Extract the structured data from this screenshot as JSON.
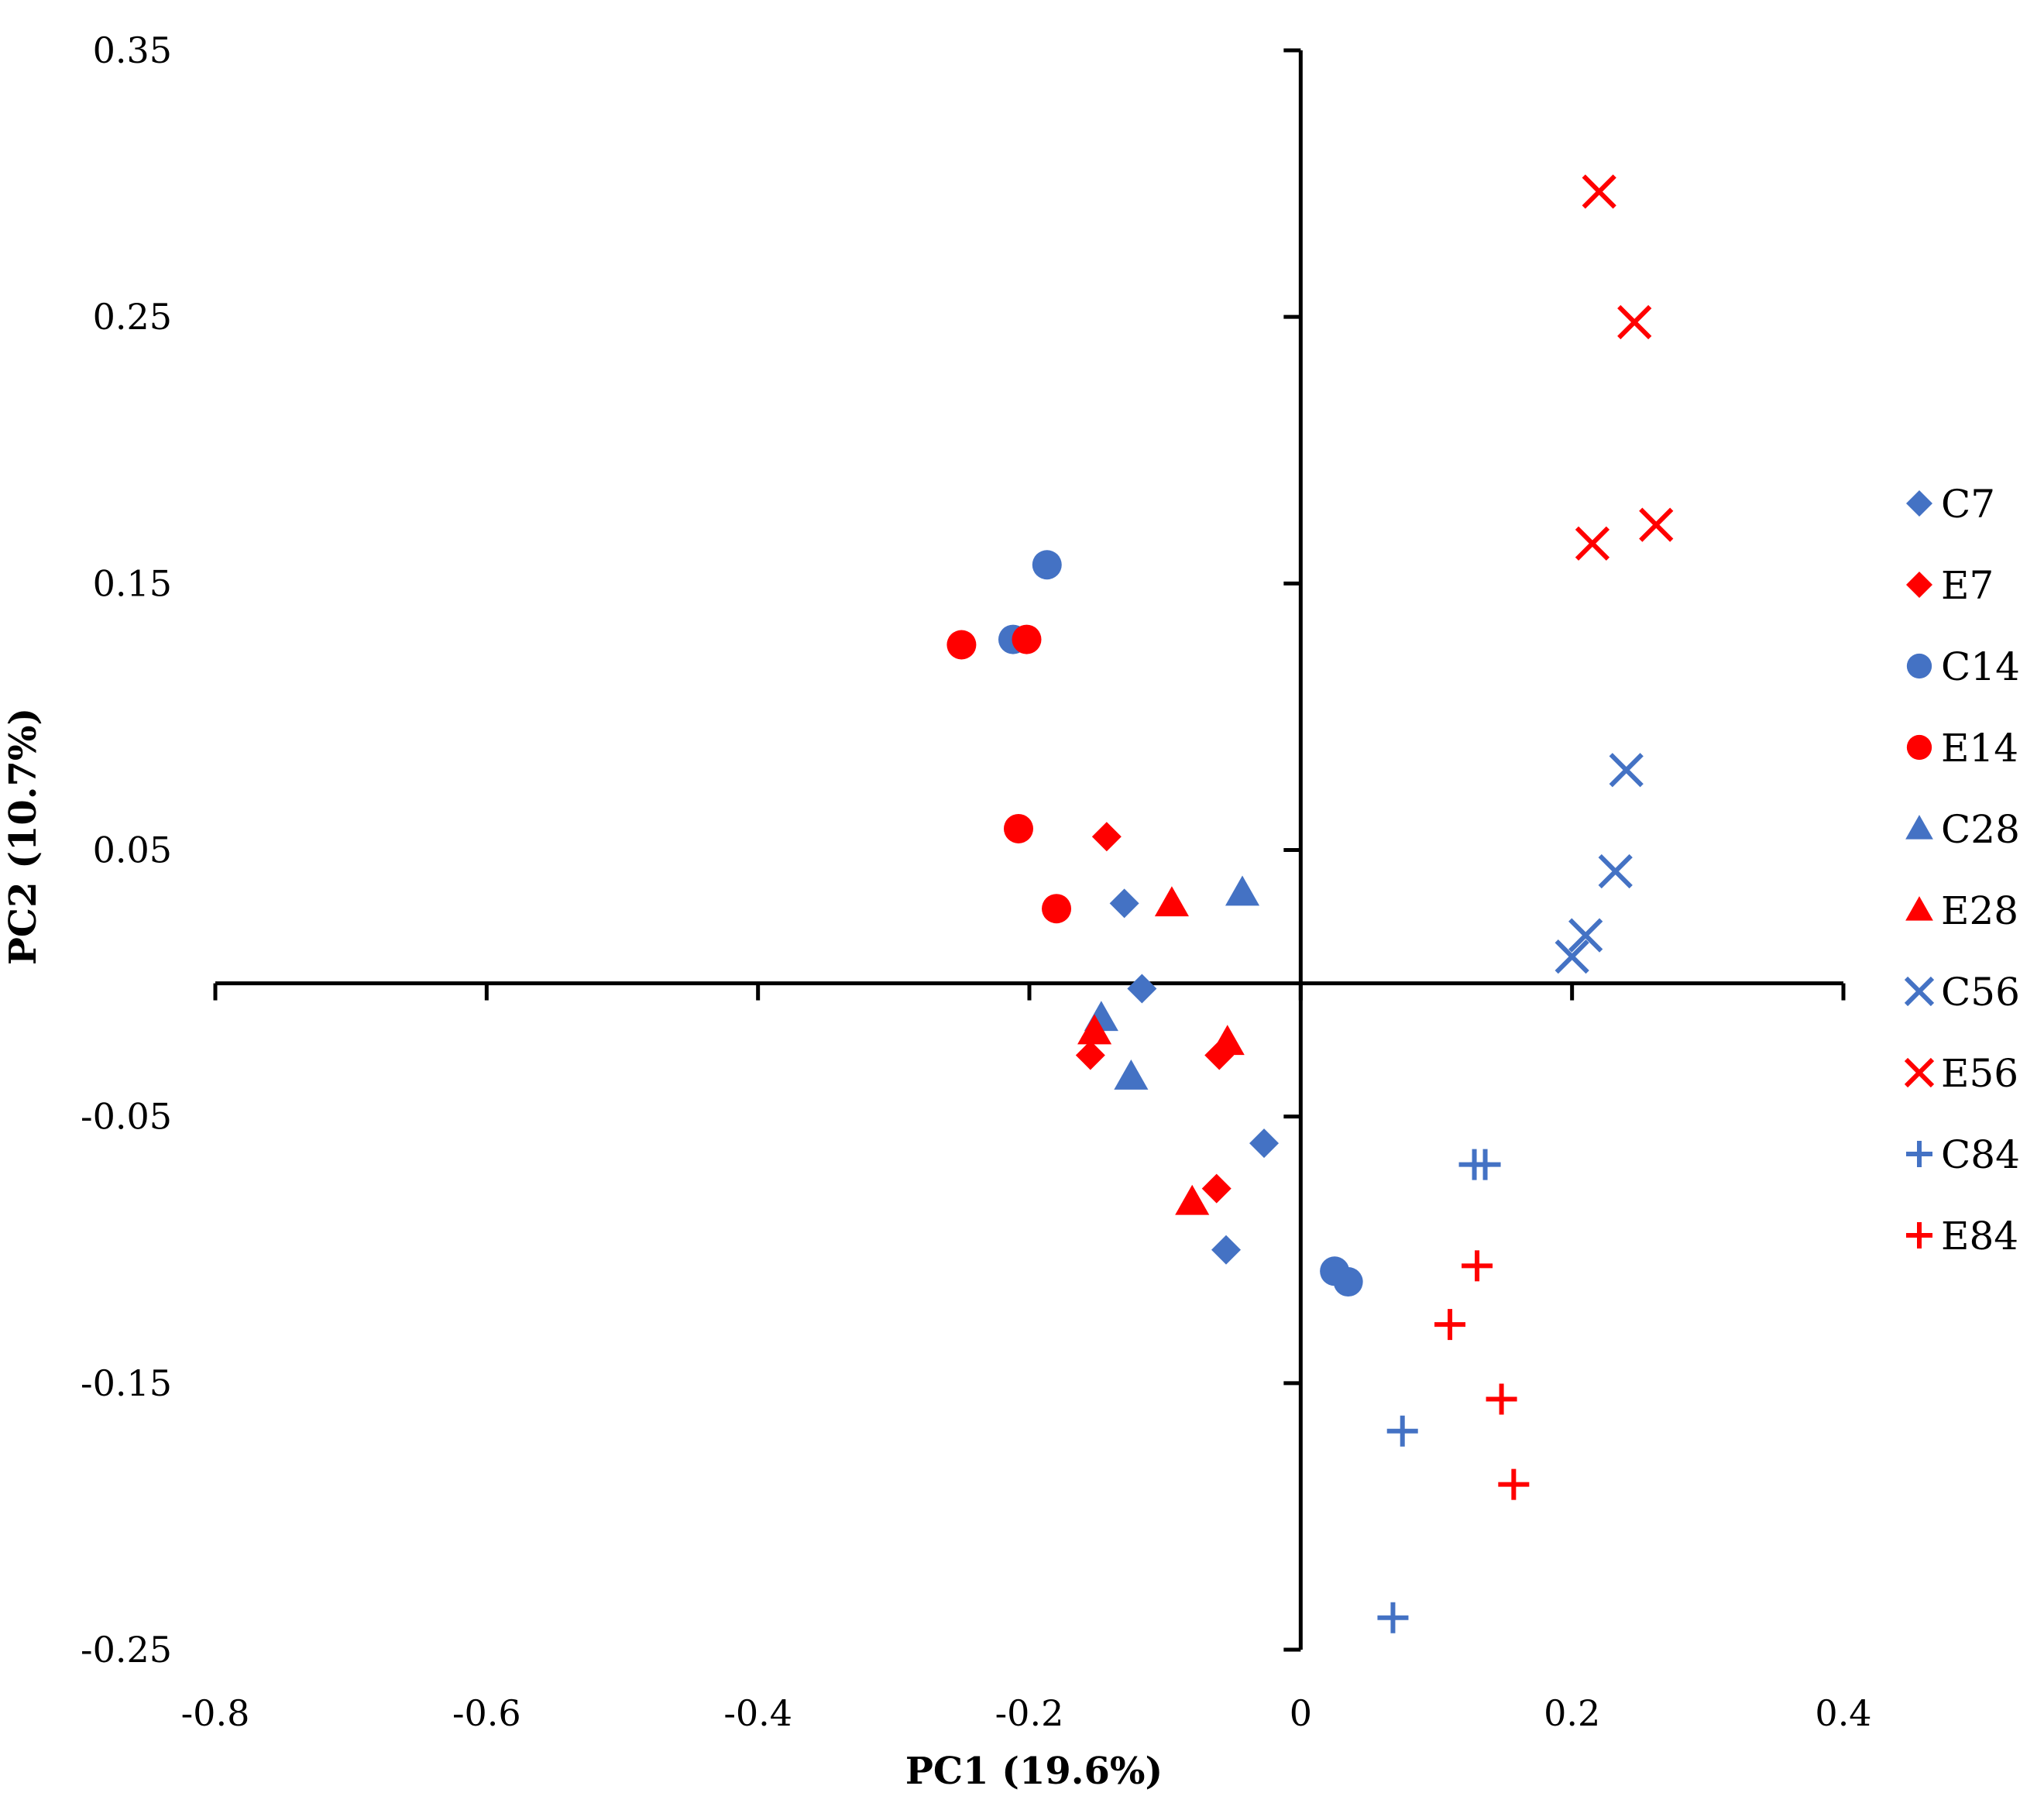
{
  "chart_data": {
    "type": "scatter",
    "title": "",
    "xlabel": "PC1 (19.6%)",
    "ylabel": "PC2 (10.7%)",
    "xlim": [
      -0.8,
      0.4
    ],
    "ylim": [
      -0.25,
      0.35
    ],
    "x_ticks": [
      -0.8,
      -0.6,
      -0.4,
      -0.2,
      0,
      0.2,
      0.4
    ],
    "x_tick_labels": [
      "-0.8",
      "-0.6",
      "-0.4",
      "-0.2",
      "0",
      "0.2",
      "0.4"
    ],
    "y_ticks": [
      0.35,
      0.25,
      0.15,
      0.05,
      -0.05,
      -0.15,
      -0.25
    ],
    "y_tick_labels": [
      "0.35",
      "0.25",
      "0.15",
      "0.05",
      "-0.05",
      "-0.15",
      "-0.25"
    ],
    "axes_cross_at_origin": true,
    "grid": false,
    "legend_position": "right",
    "series": [
      {
        "name": "C7",
        "marker": "diamond",
        "color": "#4472C4",
        "points": [
          [
            -0.13,
            0.03
          ],
          [
            -0.117,
            -0.002
          ],
          [
            -0.027,
            -0.06
          ],
          [
            -0.055,
            -0.1
          ]
        ]
      },
      {
        "name": "E7",
        "marker": "diamond",
        "color": "#FF0000",
        "points": [
          [
            -0.143,
            0.055
          ],
          [
            -0.155,
            -0.027
          ],
          [
            -0.06,
            -0.027
          ],
          [
            -0.062,
            -0.077
          ]
        ]
      },
      {
        "name": "C14",
        "marker": "circle",
        "color": "#4472C4",
        "points": [
          [
            -0.187,
            0.157
          ],
          [
            -0.212,
            0.129
          ],
          [
            0.025,
            -0.108
          ],
          [
            0.035,
            -0.112
          ]
        ]
      },
      {
        "name": "E14",
        "marker": "circle",
        "color": "#FF0000",
        "points": [
          [
            -0.25,
            0.127
          ],
          [
            -0.202,
            0.129
          ],
          [
            -0.208,
            0.058
          ],
          [
            -0.18,
            0.028
          ]
        ]
      },
      {
        "name": "C28",
        "marker": "triangle",
        "color": "#4472C4",
        "points": [
          [
            -0.043,
            0.034
          ],
          [
            -0.147,
            -0.013
          ],
          [
            -0.125,
            -0.035
          ]
        ]
      },
      {
        "name": "E28",
        "marker": "triangle",
        "color": "#FF0000",
        "points": [
          [
            -0.095,
            0.03
          ],
          [
            -0.152,
            -0.018
          ],
          [
            -0.054,
            -0.022
          ],
          [
            -0.08,
            -0.082
          ]
        ]
      },
      {
        "name": "C56",
        "marker": "x",
        "color": "#4472C4",
        "points": [
          [
            0.24,
            0.08
          ],
          [
            0.232,
            0.042
          ],
          [
            0.21,
            0.018
          ],
          [
            0.2,
            0.01
          ]
        ]
      },
      {
        "name": "E56",
        "marker": "x",
        "color": "#FF0000",
        "points": [
          [
            0.22,
            0.297
          ],
          [
            0.246,
            0.248
          ],
          [
            0.262,
            0.172
          ],
          [
            0.215,
            0.165
          ]
        ]
      },
      {
        "name": "C84",
        "marker": "plus",
        "color": "#4472C4",
        "points": [
          [
            0.128,
            -0.068
          ],
          [
            0.136,
            -0.068
          ],
          [
            0.075,
            -0.168
          ],
          [
            0.068,
            -0.238
          ]
        ]
      },
      {
        "name": "E84",
        "marker": "plus",
        "color": "#FF0000",
        "points": [
          [
            0.13,
            -0.106
          ],
          [
            0.11,
            -0.128
          ],
          [
            0.148,
            -0.156
          ],
          [
            0.157,
            -0.188
          ]
        ]
      }
    ]
  }
}
